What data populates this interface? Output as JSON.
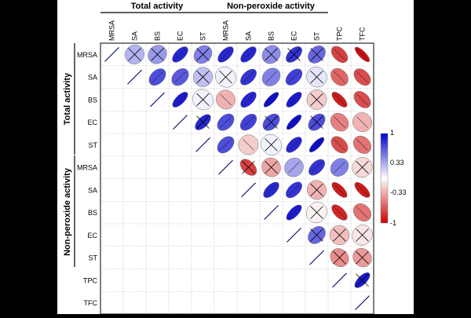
{
  "chart_data": {
    "type": "correlogram",
    "variables": [
      "MRSA",
      "SA",
      "BS",
      "EC",
      "ST",
      "MRSA",
      "SA",
      "BS",
      "EC",
      "ST",
      "TPC",
      "TFC"
    ],
    "groups": [
      {
        "label": "Total activity",
        "members": [
          "MRSA",
          "SA",
          "BS",
          "EC",
          "ST"
        ]
      },
      {
        "label": "Non-peroxide activity",
        "members": [
          "MRSA",
          "SA",
          "BS",
          "EC",
          "ST"
        ]
      }
    ],
    "matrix_upper": [
      [
        1.0,
        0.3,
        0.4,
        0.85,
        0.5,
        0.85,
        0.85,
        0.45,
        0.8,
        0.6,
        -0.75,
        -0.95
      ],
      [
        null,
        1.0,
        0.7,
        0.65,
        0.25,
        0.05,
        0.8,
        0.5,
        0.75,
        0.1,
        -0.6,
        -0.7
      ],
      [
        null,
        null,
        1.0,
        0.9,
        0.05,
        -0.3,
        0.85,
        0.95,
        0.9,
        -0.2,
        -0.9,
        -0.7
      ],
      [
        null,
        null,
        null,
        1.0,
        0.85,
        0.7,
        0.75,
        0.7,
        0.95,
        0.7,
        -0.5,
        -0.3
      ],
      [
        null,
        null,
        null,
        null,
        1.0,
        0.7,
        -0.2,
        0.05,
        0.85,
        0.95,
        -0.7,
        -0.55
      ],
      [
        null,
        null,
        null,
        null,
        null,
        1.0,
        -0.75,
        -0.35,
        0.35,
        0.8,
        0.5,
        -0.15
      ],
      [
        null,
        null,
        null,
        null,
        null,
        null,
        1.0,
        0.85,
        0.8,
        -0.3,
        -0.9,
        -0.9
      ],
      [
        null,
        null,
        null,
        null,
        null,
        null,
        null,
        1.0,
        0.9,
        -0.05,
        -0.85,
        -0.55
      ],
      [
        null,
        null,
        null,
        null,
        null,
        null,
        null,
        null,
        1.0,
        0.6,
        -0.25,
        -0.1
      ],
      [
        null,
        null,
        null,
        null,
        null,
        null,
        null,
        null,
        null,
        1.0,
        -0.45,
        -0.4
      ],
      [
        null,
        null,
        null,
        null,
        null,
        null,
        null,
        null,
        null,
        null,
        1.0,
        0.9
      ],
      [
        null,
        null,
        null,
        null,
        null,
        null,
        null,
        null,
        null,
        null,
        null,
        1.0
      ]
    ],
    "not_significant": [
      [
        0,
        1
      ],
      [
        0,
        2
      ],
      [
        0,
        4
      ],
      [
        0,
        7
      ],
      [
        0,
        8
      ],
      [
        0,
        9
      ],
      [
        1,
        4
      ],
      [
        1,
        5
      ],
      [
        1,
        9
      ],
      [
        2,
        4
      ],
      [
        2,
        9
      ],
      [
        3,
        4
      ],
      [
        3,
        7
      ],
      [
        3,
        9
      ],
      [
        4,
        7
      ],
      [
        5,
        6
      ],
      [
        5,
        7
      ],
      [
        5,
        11
      ],
      [
        6,
        9
      ],
      [
        7,
        9
      ],
      [
        8,
        9
      ],
      [
        8,
        10
      ],
      [
        8,
        11
      ],
      [
        9,
        10
      ],
      [
        9,
        11
      ],
      [
        10,
        11
      ]
    ],
    "colorbar": {
      "ticks": [
        "1",
        "0.33",
        "-0.33",
        "-1"
      ],
      "tick_values": [
        1,
        0.33,
        -0.33,
        -1
      ],
      "range": [
        -1,
        1
      ]
    },
    "colors": {
      "positive": "#0000cc",
      "negative": "#cc0000",
      "neutral": "#ffffff",
      "grid": "#bbbbbb",
      "frame": "#000000"
    }
  }
}
